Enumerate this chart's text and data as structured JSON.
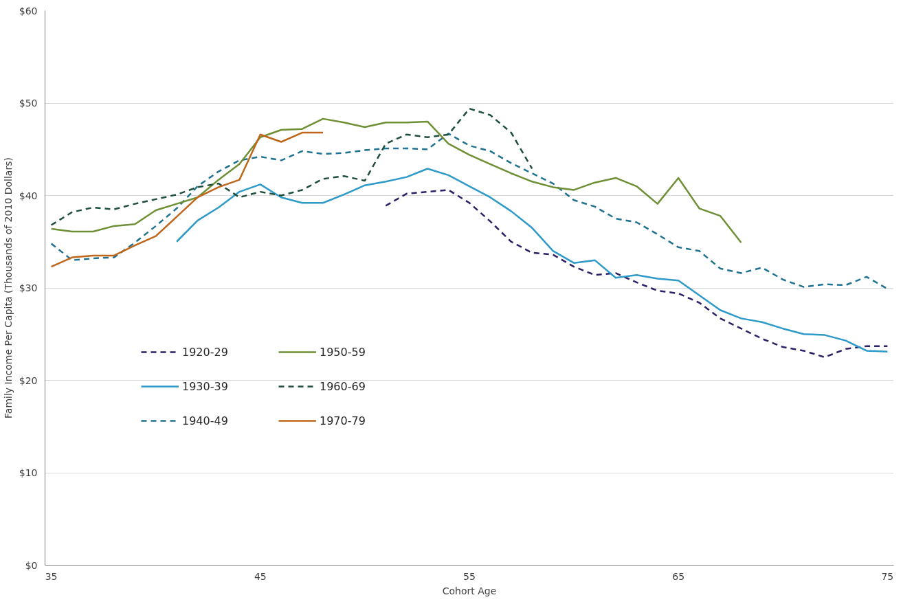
{
  "chart_data": {
    "type": "line",
    "xlabel": "Cohort Age",
    "ylabel": "Family Income Per Capita (Thousands of 2010 Dollars)",
    "xlim": [
      34.7,
      75.3
    ],
    "xticks": [
      35,
      45,
      55,
      65,
      75
    ],
    "ylim": [
      0,
      60
    ],
    "yticks": [
      {
        "value": 0,
        "label": "$0"
      },
      {
        "value": 10,
        "label": "$10"
      },
      {
        "value": 20,
        "label": "$20"
      },
      {
        "value": 30,
        "label": "$30"
      },
      {
        "value": 40,
        "label": "$40"
      },
      {
        "value": 50,
        "label": "$50"
      },
      {
        "value": 60,
        "label": "$60"
      }
    ],
    "grid": "y",
    "legend": "left",
    "series": [
      {
        "name": "1920-29",
        "color": "#2e1f66",
        "line_style": "dashed",
        "x": [
          51,
          52,
          53,
          54,
          55,
          56,
          57,
          58,
          59,
          60,
          61,
          62,
          63,
          64,
          65,
          66,
          67,
          68,
          69,
          70,
          71,
          72,
          73,
          74,
          75
        ],
        "values": [
          38.9,
          40.2,
          40.4,
          40.6,
          39.2,
          37.2,
          35.0,
          33.8,
          33.6,
          32.3,
          31.4,
          31.6,
          30.6,
          29.7,
          29.4,
          28.4,
          26.7,
          25.6,
          24.5,
          23.6,
          23.2,
          22.5,
          23.4,
          23.7,
          23.7
        ]
      },
      {
        "name": "1930-39",
        "color": "#2e9ac8",
        "line_style": "solid",
        "x": [
          41,
          42,
          43,
          44,
          45,
          46,
          47,
          48,
          49,
          50,
          51,
          52,
          53,
          54,
          55,
          56,
          57,
          58,
          59,
          60,
          61,
          62,
          63,
          64,
          65,
          66,
          67,
          68,
          69,
          70,
          71,
          72,
          73,
          74,
          75
        ],
        "values": [
          35.0,
          37.3,
          38.7,
          40.4,
          41.2,
          39.8,
          39.2,
          39.2,
          40.1,
          41.1,
          41.5,
          42.0,
          42.9,
          42.2,
          41.0,
          39.8,
          38.3,
          36.5,
          34.0,
          32.7,
          33.0,
          31.1,
          31.4,
          31.0,
          30.8,
          29.2,
          27.6,
          26.7,
          26.3,
          25.6,
          25.0,
          24.9,
          24.3,
          23.2,
          23.1
        ]
      },
      {
        "name": "1940-49",
        "color": "#1f7391",
        "line_style": "dashed",
        "x": [
          35,
          36,
          37,
          38,
          39,
          40,
          41,
          42,
          43,
          44,
          45,
          46,
          47,
          48,
          49,
          50,
          51,
          52,
          53,
          54,
          55,
          56,
          57,
          58,
          59,
          60,
          61,
          62,
          63,
          64,
          65,
          66,
          67,
          68,
          69,
          70,
          71,
          72,
          73,
          74,
          75
        ],
        "values": [
          34.8,
          33.0,
          33.2,
          33.3,
          34.9,
          36.7,
          38.6,
          41.0,
          42.6,
          43.8,
          44.2,
          43.8,
          44.8,
          44.5,
          44.6,
          44.9,
          45.1,
          45.1,
          45.0,
          46.7,
          45.4,
          44.8,
          43.5,
          42.4,
          41.3,
          39.5,
          38.8,
          37.5,
          37.1,
          35.8,
          34.4,
          34.0,
          32.1,
          31.6,
          32.2,
          30.9,
          30.1,
          30.4,
          30.3,
          31.2,
          29.9
        ]
      },
      {
        "name": "1950-59",
        "color": "#6f8f35",
        "line_style": "solid",
        "x": [
          35,
          36,
          37,
          38,
          39,
          40,
          41,
          42,
          43,
          44,
          45,
          46,
          47,
          48,
          49,
          50,
          51,
          52,
          53,
          54,
          55,
          56,
          57,
          58,
          59,
          60,
          61,
          62,
          63,
          64,
          65,
          66,
          67,
          68
        ],
        "values": [
          36.4,
          36.1,
          36.1,
          36.7,
          36.9,
          38.4,
          39.1,
          39.8,
          41.7,
          43.4,
          46.3,
          47.1,
          47.2,
          48.3,
          47.9,
          47.4,
          47.9,
          47.9,
          48.0,
          45.6,
          44.4,
          43.4,
          42.4,
          41.5,
          40.9,
          40.6,
          41.4,
          41.9,
          41.0,
          39.1,
          41.9,
          38.6,
          37.8,
          34.9
        ]
      },
      {
        "name": "1960-69",
        "color": "#1f4e3d",
        "line_style": "dashed",
        "x": [
          35,
          36,
          37,
          38,
          39,
          40,
          41,
          42,
          43,
          44,
          45,
          46,
          47,
          48,
          49,
          50,
          51,
          52,
          53,
          54,
          55,
          56,
          57,
          58
        ],
        "values": [
          36.8,
          38.2,
          38.7,
          38.5,
          39.1,
          39.6,
          40.1,
          40.9,
          41.3,
          39.8,
          40.4,
          40.0,
          40.6,
          41.8,
          42.1,
          41.6,
          45.6,
          46.6,
          46.3,
          46.6,
          49.4,
          48.7,
          46.8,
          42.9
        ]
      },
      {
        "name": "1970-79",
        "color": "#c0661a",
        "line_style": "solid",
        "x": [
          35,
          36,
          37,
          38,
          39,
          40,
          41,
          42,
          43,
          44,
          45,
          46,
          47,
          48
        ],
        "values": [
          32.3,
          33.3,
          33.5,
          33.5,
          34.6,
          35.6,
          37.7,
          39.8,
          40.9,
          41.7,
          46.6,
          45.8,
          46.8,
          46.8
        ]
      }
    ]
  }
}
